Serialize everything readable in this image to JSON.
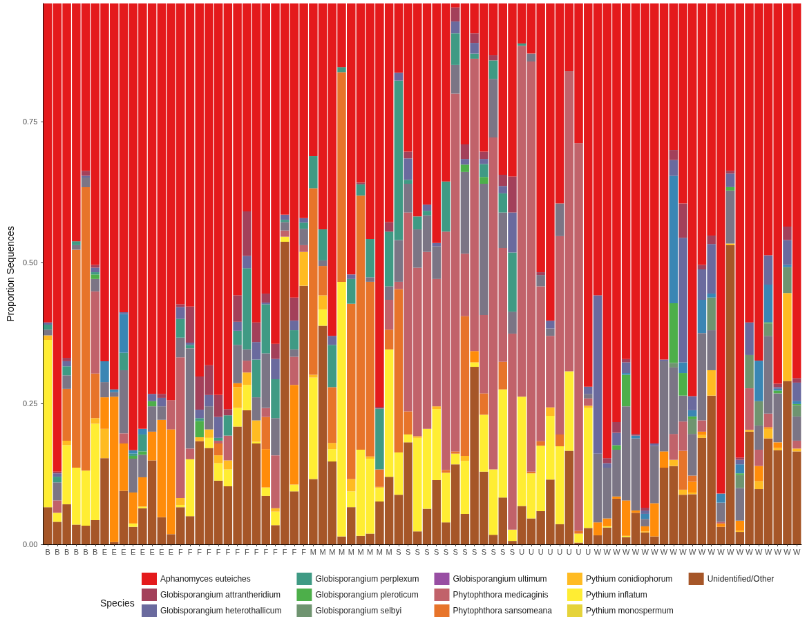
{
  "chart_data": {
    "type": "bar",
    "stacked": true,
    "ylabel": "Proportion Sequences",
    "legend_title": "Species",
    "legend": "bottom",
    "grid": false,
    "categories": [
      "B",
      "B",
      "B",
      "B",
      "B",
      "B",
      "E",
      "E",
      "E",
      "E",
      "E",
      "E",
      "E",
      "E",
      "F",
      "F",
      "F",
      "F",
      "F",
      "F",
      "F",
      "F",
      "F",
      "F",
      "F",
      "F",
      "F",
      "F",
      "M",
      "M",
      "M",
      "M",
      "M",
      "M",
      "M",
      "M",
      "M",
      "S",
      "S",
      "S",
      "S",
      "S",
      "S",
      "S",
      "S",
      "S",
      "S",
      "S",
      "S",
      "S",
      "U",
      "U",
      "U",
      "U",
      "U",
      "U",
      "U",
      "U",
      "W",
      "W",
      "W",
      "W",
      "W",
      "W",
      "W",
      "W",
      "W",
      "W",
      "W",
      "W",
      "W",
      "W",
      "W",
      "W",
      "W",
      "W",
      "W",
      "W",
      "W",
      "W"
    ],
    "ylim": [
      0,
      0.96
    ],
    "yticks": [
      {
        "value": 0,
        "label": "0.00"
      },
      {
        "value": 0.25,
        "label": "0.25"
      },
      {
        "value": 0.5,
        "label": "0.50"
      },
      {
        "value": 0.75,
        "label": "0.75"
      }
    ],
    "series": [
      {
        "name": "Unidentified/Other",
        "color": "#a65628",
        "values": [
          0.066,
          0.04,
          0.071,
          0.035,
          0.033,
          0.043,
          0.153,
          0.004,
          0.095,
          0.031,
          0.064,
          0.149,
          0.048,
          0.018,
          0.066,
          0.05,
          0.183,
          0.171,
          0.113,
          0.103,
          0.209,
          0.238,
          0.179,
          0.086,
          0.034,
          0.537,
          0.094,
          0.459,
          0.116,
          0.388,
          0.147,
          0.014,
          0.066,
          0.015,
          0.019,
          0.076,
          0.12,
          0.088,
          0.181,
          0.023,
          0.063,
          0.114,
          0.039,
          0.142,
          0.054,
          0.315,
          0.129,
          0.017,
          0.083,
          0.006,
          0.068,
          0.046,
          0.059,
          0.115,
          0.036,
          0.166,
          0.003,
          0.029,
          0.016,
          0.03,
          0.081,
          0.013,
          0.056,
          0.021,
          0.014,
          0.136,
          0.139,
          0.088,
          0.089,
          0.189,
          0.264,
          0.031,
          0.531,
          0.022,
          0.2,
          0.098,
          0.188,
          0.167,
          0.29,
          0.165
        ]
      },
      {
        "name": "Pythium monospermum",
        "color": "#e5d33a",
        "values": [
          0,
          0,
          0,
          0,
          0,
          0,
          0,
          0,
          0,
          0,
          0,
          0,
          0,
          0,
          0,
          0,
          0,
          0,
          0,
          0,
          0,
          0,
          0,
          0,
          0,
          0,
          0,
          0,
          0,
          0,
          0,
          0,
          0,
          0,
          0,
          0,
          0,
          0,
          0,
          0,
          0,
          0,
          0,
          0,
          0,
          0,
          0,
          0,
          0,
          0,
          0,
          0,
          0,
          0,
          0,
          0,
          0,
          0,
          0,
          0,
          0,
          0,
          0,
          0,
          0,
          0,
          0,
          0,
          0,
          0,
          0,
          0,
          0,
          0,
          0,
          0,
          0,
          0,
          0,
          0
        ]
      },
      {
        "name": "Pythium inflatum",
        "color": "#ffed33",
        "values": [
          0.297,
          0.016,
          0.105,
          0.101,
          0.098,
          0.171,
          0,
          0,
          0,
          0.006,
          0.003,
          0,
          0,
          0,
          0.004,
          0.101,
          0,
          0.018,
          0.031,
          0.03,
          0.033,
          0.045,
          0.003,
          0.015,
          0.024,
          0.009,
          0.012,
          0,
          0.18,
          0.029,
          0.022,
          0.452,
          0.028,
          0.153,
          0.133,
          0.024,
          0.226,
          0.075,
          0.014,
          0.166,
          0.142,
          0.126,
          0.088,
          0.019,
          0.094,
          0.008,
          0.101,
          0.116,
          0.192,
          0.02,
          0.194,
          0.08,
          0.116,
          0.113,
          0.138,
          0.141,
          0.016,
          0.213,
          0,
          0.002,
          0,
          0.002,
          0,
          0,
          0,
          0,
          0,
          0,
          0,
          0,
          0,
          0,
          0,
          0,
          0,
          0,
          0,
          0,
          0,
          0
        ]
      },
      {
        "name": "Pythium conidiophorum",
        "color": "#ffbb22",
        "values": [
          0.008,
          0,
          0.008,
          0,
          0,
          0.01,
          0.052,
          0,
          0,
          0,
          0,
          0,
          0,
          0,
          0.012,
          0,
          0.007,
          0.015,
          0.014,
          0.016,
          0.037,
          0.022,
          0.038,
          0,
          0.006,
          0,
          0,
          0.06,
          0.005,
          0.025,
          0.011,
          0,
          0.022,
          0,
          0.004,
          0.002,
          0,
          0,
          0,
          0.003,
          0,
          0.005,
          0,
          0,
          0.009,
          0,
          0,
          0,
          0,
          0,
          0,
          0,
          0,
          0.015,
          0,
          0,
          0,
          0.004,
          0,
          0,
          0,
          0,
          0,
          0.002,
          0,
          0,
          0.011,
          0.009,
          0.003,
          0.005,
          0.045,
          0,
          0.003,
          0.002,
          0.003,
          0.014,
          0.017,
          0.004,
          0.156,
          0.005
        ]
      },
      {
        "color": "#ff8c0a",
        "values": [
          0,
          0,
          0,
          0,
          0,
          0,
          0.056,
          0.258,
          0.084,
          0.055,
          0.052,
          0.051,
          0.173,
          0.186,
          0,
          0,
          0,
          0,
          0,
          0,
          0.007,
          0,
          0,
          0.068,
          0,
          0,
          0.177,
          0,
          0,
          0,
          0,
          0,
          0,
          0,
          0,
          0,
          0,
          0,
          0,
          0,
          0,
          0,
          0,
          0,
          0,
          0.02,
          0,
          0,
          0,
          0,
          0,
          0,
          0,
          0,
          0,
          0,
          0,
          0,
          0.023,
          0.014,
          0.004,
          0.063,
          0.004,
          0.009,
          0.059,
          0.029,
          0,
          0,
          0.019,
          0.006,
          0,
          0.006,
          0,
          0.018,
          0,
          0.027,
          0.003,
          0.01,
          0,
          0
        ]
      },
      {
        "name": "Phytophthora sansomeana",
        "color": "#e7742a",
        "values": [
          0,
          0,
          0.092,
          0.387,
          0.503,
          0.079,
          0,
          0,
          0,
          0,
          0,
          0,
          0,
          0,
          0,
          0,
          0,
          0,
          0.021,
          0,
          0,
          0,
          0,
          0.057,
          0,
          0,
          0,
          0,
          0.331,
          0.052,
          0.099,
          0.372,
          0.311,
          0.451,
          0.31,
          0.031,
          0.035,
          0.29,
          0.041,
          0,
          0,
          0,
          0.005,
          0.004,
          0.248,
          0,
          0.038,
          0,
          0.049,
          0,
          0,
          0.003,
          0.008,
          0,
          0.021,
          0,
          0.005,
          0,
          0,
          0,
          0,
          0,
          0,
          0,
          0,
          0,
          0,
          0.069,
          0.011,
          0,
          0,
          0,
          0,
          0,
          0,
          0,
          0,
          0,
          0,
          0
        ]
      },
      {
        "name": "Phytophthora medicaginis",
        "color": "#c1626a",
        "values": [
          0,
          0.022,
          0,
          0,
          0,
          0.146,
          0,
          0,
          0.018,
          0,
          0,
          0,
          0,
          0.052,
          0.25,
          0.019,
          0,
          0,
          0.005,
          0.044,
          0,
          0.021,
          0,
          0.016,
          0.094,
          0.011,
          0.05,
          0.012,
          0,
          0,
          0,
          0,
          0,
          0,
          0,
          0,
          0.053,
          0.013,
          0.353,
          0.299,
          0.314,
          0.226,
          0.423,
          0.635,
          0.111,
          0.519,
          0.139,
          0.589,
          0.202,
          0.348,
          0.623,
          0.728,
          0.275,
          0.127,
          0.352,
          0.533,
          0.688,
          0.013,
          0,
          0,
          0,
          0,
          0,
          0,
          0,
          0,
          0.046,
          0.052,
          0,
          0.02,
          0,
          0.003,
          0,
          0,
          0.074,
          0.029,
          0.024,
          0,
          0,
          0.014
        ]
      },
      {
        "name": "Globisporangium ultimum",
        "color": "#984ea3",
        "values": [
          0,
          0,
          0,
          0,
          0,
          0,
          0,
          0,
          0,
          0,
          0,
          0,
          0,
          0,
          0,
          0,
          0,
          0,
          0,
          0,
          0,
          0,
          0,
          0,
          0,
          0,
          0,
          0,
          0,
          0,
          0,
          0,
          0,
          0,
          0,
          0,
          0,
          0,
          0,
          0,
          0,
          0,
          0,
          0,
          0,
          0,
          0,
          0,
          0,
          0,
          0,
          0,
          0,
          0,
          0,
          0,
          0,
          0,
          0,
          0,
          0,
          0,
          0,
          0,
          0,
          0,
          0,
          0,
          0,
          0,
          0,
          0,
          0,
          0,
          0,
          0,
          0,
          0,
          0,
          0
        ]
      },
      {
        "color": "#7b7585",
        "values": [
          0.01,
          0.032,
          0.024,
          0.008,
          0.017,
          0.022,
          0.027,
          0.008,
          0.112,
          0.06,
          0.04,
          0.045,
          0.024,
          0,
          0.035,
          0.178,
          0,
          0.041,
          0,
          0,
          0.068,
          0.02,
          0.041,
          0.097,
          0.066,
          0.015,
          0.013,
          0.029,
          0,
          0.01,
          0,
          0,
          0,
          0,
          0.008,
          0,
          0.024,
          0.074,
          0.051,
          0.068,
          0.065,
          0.058,
          0,
          0.051,
          0.145,
          0,
          0.233,
          0.104,
          0.063,
          0.039,
          0,
          0.014,
          0.02,
          0.013,
          0.058,
          0,
          0,
          0.008,
          0.122,
          0.09,
          0.083,
          0.167,
          0.128,
          0.013,
          0.102,
          0.16,
          0.118,
          0.046,
          0.074,
          0.155,
          0.071,
          0.034,
          0.094,
          0.058,
          0,
          0.043,
          0.138,
          0.087,
          0,
          0.043
        ]
      },
      {
        "name": "Globisporangium selbyi",
        "color": "#6f9470",
        "values": [
          0,
          0,
          0,
          0,
          0,
          0,
          0,
          0,
          0,
          0,
          0,
          0,
          0,
          0,
          0,
          0,
          0,
          0,
          0,
          0,
          0,
          0,
          0,
          0,
          0,
          0,
          0,
          0,
          0,
          0,
          0,
          0,
          0,
          0,
          0,
          0,
          0,
          0,
          0,
          0,
          0,
          0,
          0,
          0,
          0,
          0,
          0,
          0,
          0,
          0,
          0,
          0,
          0,
          0,
          0,
          0,
          0,
          0,
          0,
          0,
          0,
          0,
          0,
          0,
          0,
          0,
          0.008,
          0,
          0.026,
          0,
          0.058,
          0,
          0,
          0.023,
          0.059,
          0.043,
          0.022,
          0,
          0.046,
          0.02
        ]
      },
      {
        "name": "Globisporangium pleroticum",
        "color": "#4daf4a",
        "values": [
          0,
          0,
          0,
          0,
          0,
          0.008,
          0,
          0,
          0,
          0.005,
          0.006,
          0.009,
          0,
          0,
          0,
          0,
          0.029,
          0,
          0,
          0,
          0,
          0,
          0,
          0,
          0,
          0,
          0,
          0,
          0,
          0,
          0,
          0,
          0,
          0,
          0,
          0,
          0,
          0,
          0,
          0,
          0,
          0,
          0,
          0,
          0.013,
          0,
          0.012,
          0,
          0,
          0,
          0,
          0,
          0,
          0,
          0,
          0,
          0,
          0,
          0,
          0,
          0.008,
          0.056,
          0,
          0,
          0,
          0,
          0.106,
          0.04,
          0.005,
          0,
          0,
          0,
          0.006,
          0.003,
          0,
          0,
          0.002,
          0.005,
          0,
          0.002
        ]
      },
      {
        "name": "Globisporangium perplexum",
        "color": "#3f9a84",
        "values": [
          0.009,
          0.01,
          0.016,
          0.007,
          0,
          0.004,
          0,
          0,
          0.031,
          0.004,
          0.03,
          0,
          0,
          0,
          0.033,
          0.006,
          0.005,
          0,
          0.005,
          0.036,
          0.025,
          0.144,
          0.067,
          0.087,
          0.069,
          0.004,
          0.034,
          0.011,
          0.057,
          0.055,
          0.075,
          0.009,
          0.044,
          0.02,
          0.068,
          0.108,
          0.097,
          0.283,
          0.007,
          0.023,
          0.008,
          0,
          0.089,
          0.056,
          0,
          0.009,
          0.023,
          0.033,
          0.034,
          0.105,
          0.004,
          0,
          0,
          0,
          0,
          0,
          0,
          0,
          0,
          0,
          0,
          0,
          0,
          0,
          0,
          0,
          0,
          0,
          0,
          0,
          0,
          0,
          0,
          0,
          0,
          0,
          0,
          0,
          0,
          0
        ]
      },
      {
        "color": "#3a86b4",
        "values": [
          0,
          0,
          0,
          0,
          0,
          0,
          0.037,
          0.005,
          0.069,
          0.006,
          0.01,
          0,
          0,
          0,
          0,
          0,
          0,
          0,
          0,
          0,
          0,
          0,
          0,
          0,
          0,
          0,
          0,
          0,
          0,
          0,
          0,
          0,
          0,
          0,
          0,
          0,
          0,
          0,
          0,
          0,
          0,
          0,
          0,
          0,
          0,
          0,
          0,
          0,
          0,
          0,
          0,
          0,
          0,
          0,
          0,
          0,
          0,
          0,
          0,
          0,
          0,
          0.003,
          0.005,
          0.009,
          0,
          0,
          0.226,
          0.019,
          0.011,
          0.059,
          0.007,
          0.016,
          0,
          0.016,
          0,
          0.072,
          0.067,
          0.003,
          0.004,
          0.005
        ]
      },
      {
        "name": "Globisporangium heterothallicum",
        "color": "#6a6a9e",
        "values": [
          0.004,
          0.006,
          0.009,
          0,
          0.003,
          0.008,
          0,
          0,
          0.003,
          0,
          0,
          0.013,
          0.015,
          0,
          0.021,
          0.004,
          0.015,
          0.02,
          0.037,
          0,
          0.016,
          0.022,
          0.031,
          0.003,
          0.036,
          0.009,
          0.017,
          0.008,
          0,
          0,
          0.016,
          0,
          0.008,
          0,
          0,
          0,
          0,
          0.014,
          0.038,
          0,
          0.011,
          0.006,
          0,
          0.021,
          0.01,
          0.019,
          0.009,
          0,
          0.013,
          0.071,
          0,
          0,
          0,
          0.014,
          0,
          0,
          0,
          0.013,
          0.281,
          0.008,
          0.022,
          0.019,
          0,
          0.006,
          0.004,
          0.003,
          0.028,
          0.221,
          0.025,
          0.054,
          0.088,
          0,
          0.024,
          0.008,
          0.058,
          0,
          0.052,
          0.003,
          0.044,
          0.033
        ]
      },
      {
        "name": "Globisporangium attrantheridium",
        "color": "#a3405a",
        "values": [
          0,
          0.003,
          0.006,
          0,
          0.009,
          0.005,
          0,
          0,
          0,
          0,
          0,
          0,
          0.007,
          0,
          0.005,
          0.064,
          0.059,
          0.053,
          0.039,
          0.011,
          0.047,
          0.079,
          0.035,
          0.016,
          0.027,
          0,
          0.041,
          0,
          0,
          0,
          0,
          0,
          0,
          0.003,
          0,
          0.003,
          0.017,
          0,
          0.012,
          0,
          0,
          0,
          0,
          0.025,
          0.026,
          0.017,
          0.013,
          0.009,
          0.02,
          0.064,
          0,
          0,
          0.005,
          0,
          0,
          0,
          0,
          0,
          0,
          0.009,
          0.019,
          0.006,
          0.003,
          0.005,
          0,
          0,
          0.018,
          0.061,
          0,
          0.008,
          0.015,
          0,
          0.005,
          0.004,
          0,
          0,
          0,
          0.006,
          0.024,
          0.008
        ]
      },
      {
        "name": "Aphanomyces euteiches",
        "color": "#e41a1c",
        "values": [
          0.566,
          0.831,
          0.629,
          0.422,
          0.297,
          0.464,
          0.635,
          0.685,
          0.548,
          0.793,
          0.755,
          0.693,
          0.693,
          0.704,
          0.534,
          0.538,
          0.662,
          0.642,
          0.695,
          0.72,
          0.518,
          0.369,
          0.566,
          0.515,
          0.604,
          0.375,
          0.522,
          0.381,
          0.271,
          0.401,
          0.59,
          0.113,
          0.481,
          0.318,
          0.418,
          0.716,
          0.388,
          0.123,
          0.263,
          0.378,
          0.357,
          0.425,
          0.316,
          0.007,
          0.25,
          0.053,
          0.263,
          0.092,
          0.304,
          0.307,
          0.071,
          0.089,
          0.477,
          0.563,
          0.355,
          0.12,
          0.248,
          0.68,
          0.518,
          0.807,
          0.743,
          0.631,
          0.764,
          0.895,
          0.781,
          0.632,
          0.26,
          0.355,
          0.697,
          0.464,
          0.412,
          0.87,
          0.297,
          0.806,
          0.566,
          0.634,
          0.447,
          0.675,
          0.396,
          0.665
        ]
      }
    ]
  }
}
